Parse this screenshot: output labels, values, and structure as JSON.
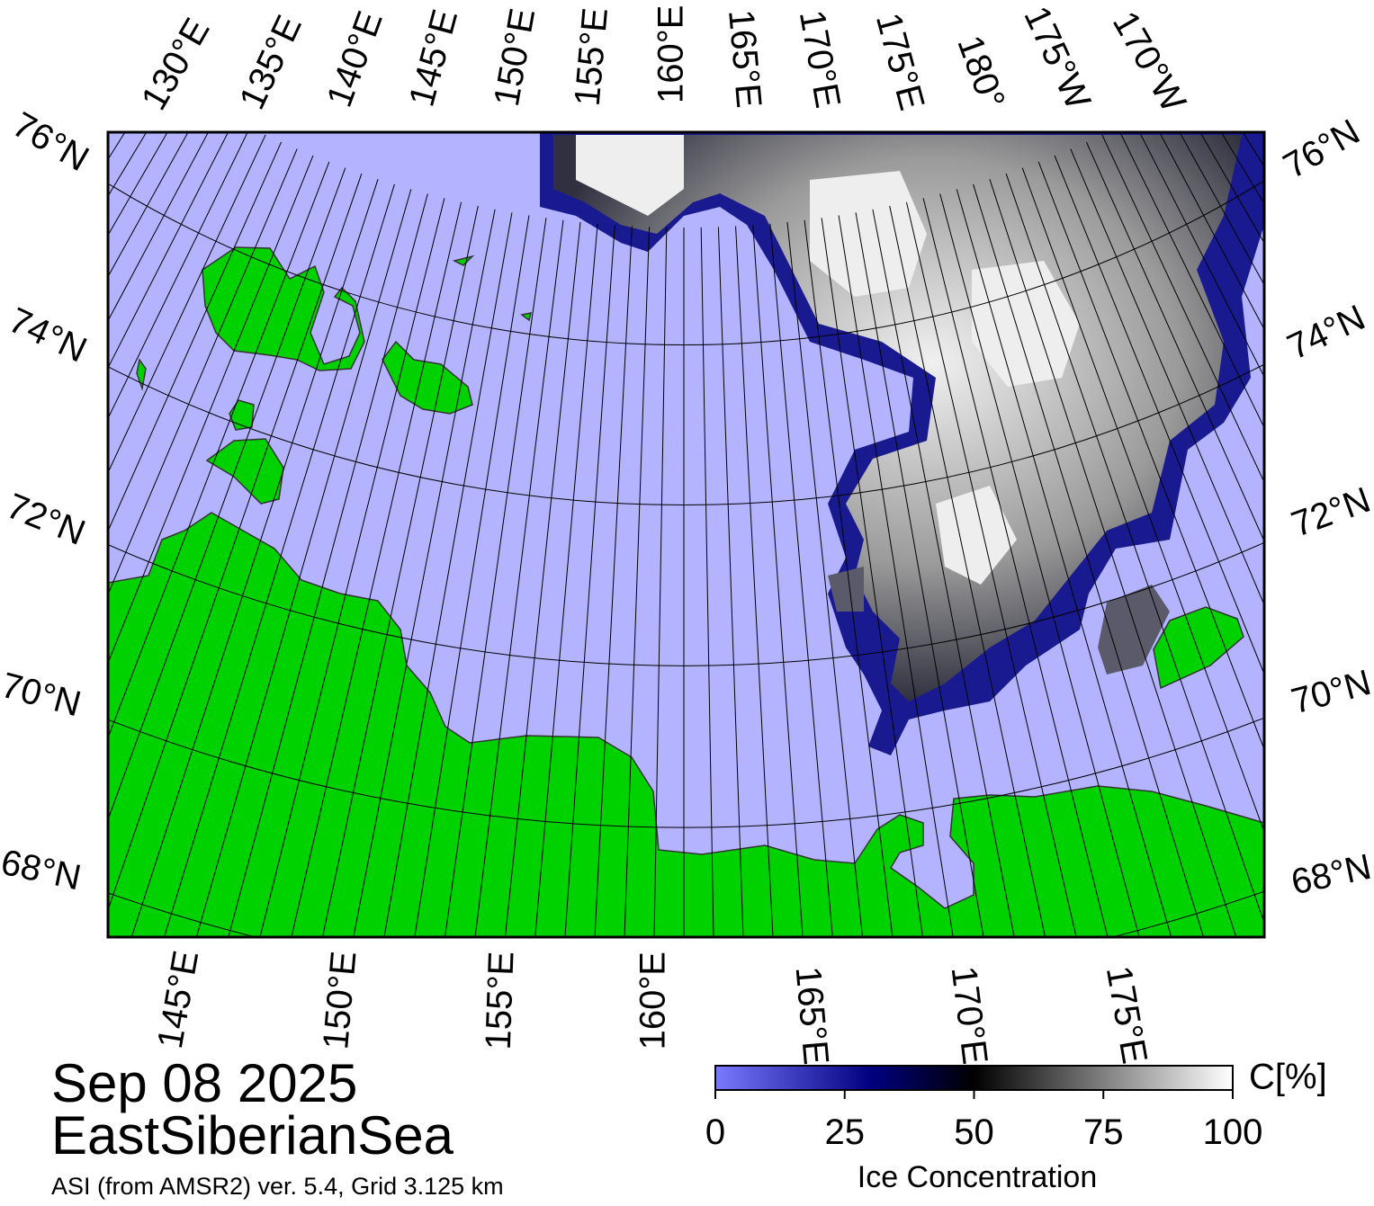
{
  "map": {
    "date": "Sep 08 2025",
    "region": "EastSiberianSea",
    "source": "ASI (from AMSR2) ver. 5.4,  Grid 3.125 km",
    "top_lon_labels": [
      "130°E",
      "135°E",
      "140°E",
      "145°E",
      "150°E",
      "155°E",
      "160°E",
      "165°E",
      "170°E",
      "175°E",
      "180°",
      "175°W",
      "170°W"
    ],
    "bottom_lon_labels": [
      "145°E",
      "150°E",
      "155°E",
      "160°E",
      "165°E",
      "170°E",
      "175°E"
    ],
    "left_lat_labels": [
      "76°N",
      "74°N",
      "72°N",
      "70°N",
      "68°N"
    ],
    "right_lat_labels": [
      "76°N",
      "74°N",
      "72°N",
      "70°N",
      "68°N"
    ],
    "colorbar": {
      "unit": "C[%]",
      "label": "Ice Concentration",
      "range": [
        0,
        100
      ],
      "ticks": [
        0,
        25,
        50,
        75,
        100
      ]
    }
  }
}
